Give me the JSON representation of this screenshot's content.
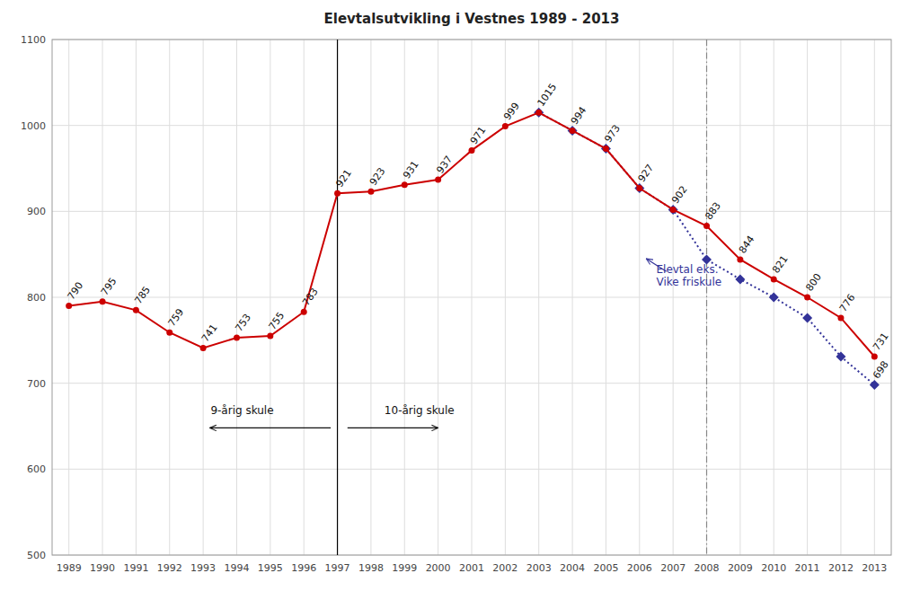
{
  "chart_data": {
    "type": "line",
    "title": "Elevtalsutvikling i Vestnes 1989 - 2013",
    "x": [
      1989,
      1990,
      1991,
      1992,
      1993,
      1994,
      1995,
      1996,
      1997,
      1998,
      1999,
      2000,
      2001,
      2002,
      2003,
      2004,
      2005,
      2006,
      2007,
      2008,
      2009,
      2010,
      2011,
      2012,
      2013
    ],
    "series": [
      {
        "color": "#CC0000",
        "marker": "circle",
        "line_style": "solid",
        "data_labels": true,
        "values": [
          790,
          795,
          785,
          759,
          741,
          753,
          755,
          783,
          921,
          923,
          931,
          937,
          971,
          999,
          1015,
          994,
          973,
          927,
          902,
          883,
          844,
          821,
          800,
          776,
          731
        ]
      },
      {
        "color": "#333399",
        "marker": "diamond",
        "line_style": "dotted",
        "values": [
          null,
          null,
          null,
          null,
          null,
          null,
          null,
          null,
          null,
          null,
          null,
          null,
          null,
          null,
          1015,
          994,
          973,
          927,
          902,
          844,
          821,
          800,
          776,
          731,
          698
        ]
      }
    ],
    "xlim": [
      1988.5,
      2013.5
    ],
    "ylim": [
      500,
      1100
    ],
    "xticks": [
      1989,
      1990,
      1991,
      1992,
      1993,
      1994,
      1995,
      1996,
      1997,
      1998,
      1999,
      2000,
      2001,
      2002,
      2003,
      2004,
      2005,
      2006,
      2007,
      2008,
      2009,
      2010,
      2011,
      2012,
      2013
    ],
    "yticks": [
      500,
      600,
      700,
      800,
      900,
      1000,
      1100
    ],
    "grid": true,
    "vlines": [
      {
        "x": 1997,
        "color": "#000000",
        "line_style": "solid"
      },
      {
        "x": 2008,
        "color": "#888888",
        "line_style": "dashdot"
      }
    ],
    "annotations": [
      {
        "text": "9-årig skule",
        "x": 1995.1,
        "y": 660,
        "arrow": [
          1996.8,
          648,
          1993.2,
          648
        ]
      },
      {
        "text": "10-årig skule",
        "x": 1998.4,
        "y": 660,
        "arrow": [
          1997.3,
          648,
          2000.0,
          648
        ]
      },
      {
        "text": "Elevtal eks.\nVike friskule",
        "x": 2006.5,
        "y": 840,
        "color": "#333399",
        "arrow": [
          2006.8,
          830,
          2006.2,
          845
        ]
      },
      {
        "text": "698",
        "x": 2013,
        "y": 698
      }
    ]
  }
}
